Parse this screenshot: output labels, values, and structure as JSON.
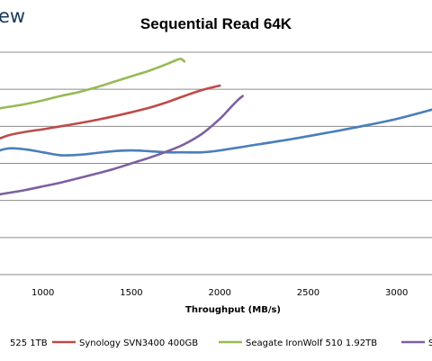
{
  "brand": "ew",
  "chart_data": {
    "type": "line",
    "title": "Sequential Read 64K",
    "xlabel": "Throughput (MB/s)",
    "ylabel": "",
    "xlim": [
      630,
      3200
    ],
    "ylim": [
      0,
      6
    ],
    "x_ticks": [
      "1000",
      "1500",
      "2000",
      "2500",
      "3000"
    ],
    "x_tick_values": [
      1000,
      1500,
      2000,
      2500,
      3000
    ],
    "y_gridlines": [
      1,
      2,
      3,
      4,
      5,
      6
    ],
    "grid": true,
    "legend_position": "bottom",
    "series": [
      {
        "name": "525 1TB",
        "color": "#4a7ebb",
        "x": [
          630,
          700,
          800,
          900,
          1000,
          1100,
          1200,
          1300,
          1400,
          1500,
          1600,
          1700,
          1800,
          1900,
          2000,
          2200,
          2400,
          2600,
          2800,
          3000,
          3200
        ],
        "y": [
          3.05,
          3.25,
          3.4,
          3.38,
          3.3,
          3.22,
          3.23,
          3.28,
          3.33,
          3.35,
          3.33,
          3.3,
          3.3,
          3.3,
          3.35,
          3.5,
          3.65,
          3.82,
          4.0,
          4.2,
          4.45
        ]
      },
      {
        "name": "Synology SVN3400 400GB",
        "color": "#be4b48",
        "x": [
          630,
          700,
          800,
          900,
          1000,
          1100,
          1200,
          1300,
          1400,
          1500,
          1600,
          1700,
          1800,
          1900,
          2000
        ],
        "y": [
          3.35,
          3.55,
          3.75,
          3.85,
          3.92,
          4.0,
          4.08,
          4.17,
          4.27,
          4.38,
          4.5,
          4.65,
          4.82,
          4.98,
          5.1
        ]
      },
      {
        "name": "Seagate IronWolf 510 1.92TB",
        "color": "#98b954",
        "x": [
          630,
          700,
          800,
          900,
          1000,
          1100,
          1200,
          1300,
          1400,
          1500,
          1600,
          1700,
          1750,
          1780,
          1800
        ],
        "y": [
          4.4,
          4.45,
          4.52,
          4.6,
          4.7,
          4.82,
          4.92,
          5.05,
          5.2,
          5.35,
          5.5,
          5.68,
          5.78,
          5.82,
          5.75
        ]
      },
      {
        "name": "S",
        "color": "#7d5fa0",
        "x": [
          630,
          700,
          800,
          900,
          1000,
          1100,
          1200,
          1300,
          1400,
          1500,
          1600,
          1700,
          1800,
          1900,
          2000,
          2050,
          2100,
          2130
        ],
        "y": [
          2.08,
          2.12,
          2.2,
          2.28,
          2.38,
          2.48,
          2.6,
          2.72,
          2.85,
          3.0,
          3.15,
          3.32,
          3.52,
          3.8,
          4.2,
          4.45,
          4.7,
          4.82
        ]
      }
    ]
  }
}
